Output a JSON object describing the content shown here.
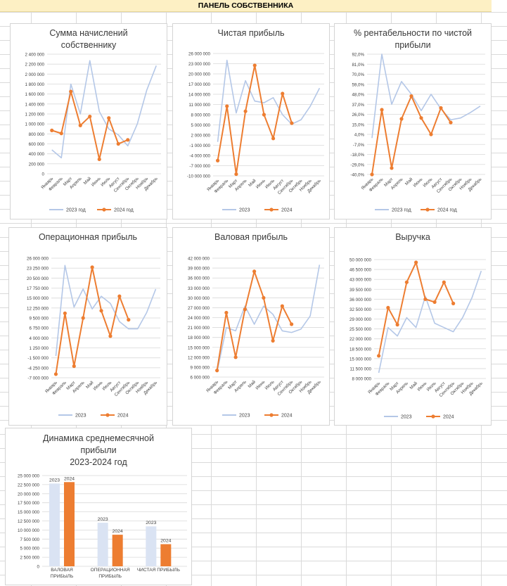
{
  "header": {
    "title": "ПАНЕЛЬ СОБСТВЕННИКА"
  },
  "colors": {
    "series_2023": "#b4c7e7",
    "series_2024": "#ed7d31",
    "bar_2023": "#dae3f3",
    "bar_2024": "#ed7d31",
    "grid": "#d9d9d9"
  },
  "months": [
    "Январь",
    "Февраль",
    "Март",
    "Апрель",
    "Май",
    "Июнь",
    "Июль",
    "Август",
    "Сентябрь",
    "Октябрь",
    "Ноябрь",
    "Декабрь"
  ],
  "chart_data": [
    {
      "id": "owner_accruals",
      "type": "line",
      "title_lines": [
        "Сумма начислений",
        "собственнику"
      ],
      "y_ticks": [
        "2 400 000",
        "2 200 000",
        "2 000 000",
        "1 800 000",
        "1 600 000",
        "1 400 000",
        "1 200 000",
        "1 000 000",
        "800 000",
        "600 000",
        "400 000",
        "200 000",
        "0"
      ],
      "ylim": [
        0,
        2400000
      ],
      "series": [
        {
          "name": "2023 год",
          "values": [
            480000,
            320000,
            1800000,
            1200000,
            2270000,
            1250000,
            900000,
            780000,
            560000,
            1000000,
            1680000,
            2170000
          ]
        },
        {
          "name": "2024 год",
          "values": [
            870000,
            810000,
            1650000,
            970000,
            1150000,
            290000,
            1120000,
            600000,
            680000,
            null,
            null,
            null
          ]
        }
      ]
    },
    {
      "id": "net_profit",
      "type": "line",
      "title_lines": [
        "Чистая прибыль"
      ],
      "y_ticks": [
        "26 000 000",
        "23 000 000",
        "20 000 000",
        "17 000 000",
        "14 000 000",
        "11 000 000",
        "8 000 000",
        "5 000 000",
        "2 000 000",
        "-1 000 000",
        "-4 000 000",
        "-7 000 000",
        "-10 000 000"
      ],
      "ylim": [
        -10000000,
        26000000
      ],
      "series": [
        {
          "name": "2023",
          "values": [
            0,
            24000000,
            8500000,
            18000000,
            12000000,
            11500000,
            13000000,
            8000000,
            5200000,
            6500000,
            10500000,
            15800000
          ]
        },
        {
          "name": "2024",
          "values": [
            -5500000,
            10500000,
            -9500000,
            9000000,
            22500000,
            8000000,
            1000000,
            14200000,
            5500000,
            null,
            null,
            null
          ]
        }
      ]
    },
    {
      "id": "net_margin",
      "type": "line",
      "title_lines": [
        "% рентабельности по чистой",
        "прибыли"
      ],
      "y_ticks": [
        "92,0%",
        "81,0%",
        "70,0%",
        "59,0%",
        "48,0%",
        "37,0%",
        "26,0%",
        "15,0%",
        "4,0%",
        "-7,0%",
        "-18,0%",
        "-29,0%",
        "-40,0%"
      ],
      "ylim": [
        -40,
        92
      ],
      "series": [
        {
          "name": "2023 год",
          "values": [
            0,
            92,
            37,
            62,
            48,
            30,
            48,
            32,
            20,
            22,
            28,
            35
          ]
        },
        {
          "name": "2024 год",
          "values": [
            -40,
            31,
            -33,
            21,
            46,
            22,
            4,
            33,
            17,
            null,
            null,
            null
          ]
        }
      ]
    },
    {
      "id": "operating_profit",
      "type": "line",
      "title_lines": [
        "Операционная прибыль"
      ],
      "y_ticks": [
        "26 000 000",
        "23 250 000",
        "20 500 000",
        "17 750 000",
        "15 000 000",
        "12 250 000",
        "9 500 000",
        "6 750 000",
        "4 000 000",
        "1 250 000",
        "-1 500 000",
        "-4 250 000",
        "-7 000 000"
      ],
      "ylim": [
        -7000000,
        26000000
      ],
      "series": [
        {
          "name": "2023",
          "values": [
            -1000000,
            24000000,
            12500000,
            17500000,
            12000000,
            15500000,
            13500000,
            8500000,
            6500000,
            6500000,
            11000000,
            17500000
          ]
        },
        {
          "name": "2024",
          "values": [
            -6000000,
            10800000,
            -3800000,
            9500000,
            23500000,
            11500000,
            4500000,
            15500000,
            9000000,
            null,
            null,
            null
          ]
        }
      ]
    },
    {
      "id": "gross_profit",
      "type": "line",
      "title_lines": [
        "Валовая прибыль"
      ],
      "y_ticks": [
        "42 000 000",
        "39 000 000",
        "36 000 000",
        "33 000 000",
        "30 000 000",
        "27 000 000",
        "24 000 000",
        "21 000 000",
        "18 000 000",
        "15 000 000",
        "12 000 000",
        "9 000 000",
        "6 000 000"
      ],
      "ylim": [
        6000000,
        42000000
      ],
      "series": [
        {
          "name": "2023",
          "values": [
            7500000,
            21000000,
            20000000,
            27500000,
            22000000,
            27500000,
            25000000,
            20000000,
            19500000,
            20500000,
            24500000,
            40000000
          ]
        },
        {
          "name": "2024",
          "values": [
            8000000,
            25500000,
            12000000,
            26500000,
            38000000,
            30000000,
            17000000,
            27500000,
            22000000,
            null,
            null,
            null
          ]
        }
      ]
    },
    {
      "id": "revenue",
      "type": "line",
      "title_lines": [
        "Выручка"
      ],
      "y_ticks": [
        "50 000 000",
        "46 500 000",
        "43 000 000",
        "39 500 000",
        "36 000 000",
        "32 500 000",
        "29 000 000",
        "25 500 000",
        "22 000 000",
        "18 500 000",
        "15 000 000",
        "11 500 000",
        "8 000 000"
      ],
      "ylim": [
        8000000,
        50000000
      ],
      "series": [
        {
          "name": "2023",
          "values": [
            10000000,
            26000000,
            23000000,
            29500000,
            26000000,
            37000000,
            27500000,
            26000000,
            24500000,
            29500000,
            36500000,
            46000000
          ]
        },
        {
          "name": "2024",
          "values": [
            16000000,
            33000000,
            27000000,
            42000000,
            49000000,
            36000000,
            35000000,
            42000000,
            34500000,
            null,
            null,
            null
          ]
        }
      ]
    },
    {
      "id": "avg_monthly_profit",
      "type": "bar",
      "title_lines": [
        "Динамика среднемесячной",
        "прибыли",
        "2023-2024 год"
      ],
      "y_ticks": [
        "25 000 000",
        "22 500 000",
        "20 000 000",
        "17 500 000",
        "15 000 000",
        "12 500 000",
        "10 000 000",
        "7 500 000",
        "5 000 000",
        "2 500 000",
        "0"
      ],
      "ylim": [
        0,
        25000000
      ],
      "categories": [
        [
          "ВАЛОВАЯ",
          "ПРИБЫЛЬ"
        ],
        [
          "ОПЕРАЦИОННАЯ",
          "ПРИБЫЛЬ"
        ],
        [
          "ЧИСТАЯ ПРИБЫЛЬ"
        ]
      ],
      "series": [
        {
          "name": "2023",
          "values": [
            22800000,
            12000000,
            11000000
          ]
        },
        {
          "name": "2024",
          "values": [
            23200000,
            8700000,
            6100000
          ]
        }
      ]
    }
  ]
}
